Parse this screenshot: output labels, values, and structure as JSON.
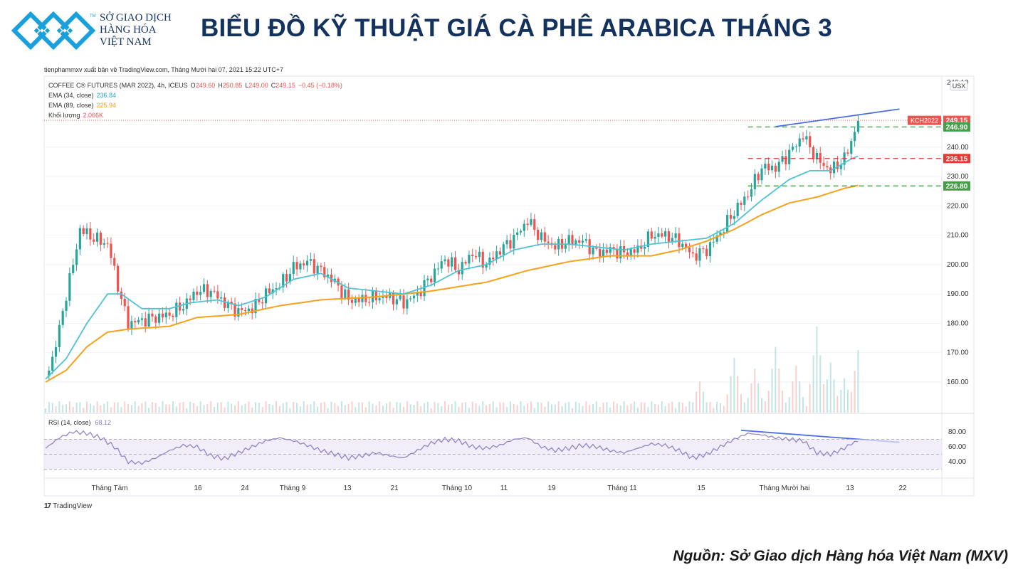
{
  "header": {
    "logo_lines": [
      "SỞ GIAO DỊCH",
      "HÀNG HÓA",
      "VIỆT NAM"
    ],
    "logo_mark": "TM",
    "title": "BIỂU ĐỒ KỸ THUẬT GIÁ CÀ PHÊ ARABICA THÁNG 3"
  },
  "publish_line": "tienphammxv xuất bản về TradingView.com, Tháng Mười hai 07, 2021 15:22 UTC+7",
  "legend": {
    "symbol": "COFFEE C® FUTURES (MAR 2022), 4h, ICEUS",
    "o_label": "O",
    "o_value": "249.60",
    "h_label": "H",
    "h_value": "250.85",
    "l_label": "L",
    "l_value": "249.00",
    "c_label": "C",
    "c_value": "249.15",
    "change": "−0.45 (−0.18%)",
    "ema34_label": "EMA (34, close)",
    "ema34_value": "236.84",
    "ema89_label": "EMA (89, close)",
    "ema89_value": "225.94",
    "volume_label": "Khối lượng",
    "volume_value": "2.066K",
    "rsi_label": "RSI (14, close)",
    "rsi_value": "68.12"
  },
  "currency": "USX",
  "price_tags": {
    "symbol": "KCH2022",
    "close": "249.15",
    "resistance": "246.90",
    "mid": "236.15",
    "support": "226.80"
  },
  "footer": {
    "brand_mark": "17",
    "brand": "TradingView",
    "source": "Nguồn: Sở Giao dịch Hàng hóa Việt Nam (MXV)"
  },
  "colors": {
    "up": "#26a69a",
    "down": "#ef5350",
    "ema34": "#4fc3d4",
    "ema89": "#f5a11c",
    "rsi": "#8e7cc3",
    "trend": "#4a6de5",
    "support": "#43a047",
    "resistance": "#e53935",
    "brand": "#14325e"
  },
  "chart_data": {
    "type": "candlestick",
    "title": "COFFEE C® FUTURES (MAR 2022), 4h, ICEUS",
    "ylim": [
      152,
      263
    ],
    "y_ticks": [
      160,
      170,
      180,
      190,
      200,
      210,
      220,
      230,
      240
    ],
    "top_tick_partial": "249.10",
    "x_ticks": [
      "Tháng Tám",
      "16",
      "24",
      "Tháng 9",
      "13",
      "21",
      "Tháng 10",
      "11",
      "19",
      "Tháng 11",
      "15",
      "Tháng Mười hai",
      "13",
      "22"
    ],
    "price_path_keypoints": [
      [
        0,
        162
      ],
      [
        1,
        168
      ],
      [
        2,
        178
      ],
      [
        3,
        190
      ],
      [
        4,
        200
      ],
      [
        5,
        212
      ],
      [
        7,
        209
      ],
      [
        9,
        207
      ],
      [
        10,
        198
      ],
      [
        11,
        188
      ],
      [
        12,
        180
      ],
      [
        14,
        181
      ],
      [
        16,
        182
      ],
      [
        18,
        183
      ],
      [
        20,
        186
      ],
      [
        22,
        191
      ],
      [
        24,
        191
      ],
      [
        26,
        187
      ],
      [
        28,
        184
      ],
      [
        30,
        185
      ],
      [
        32,
        190
      ],
      [
        34,
        193
      ],
      [
        36,
        199
      ],
      [
        38,
        201
      ],
      [
        40,
        198
      ],
      [
        42,
        194
      ],
      [
        44,
        188
      ],
      [
        46,
        188
      ],
      [
        48,
        189
      ],
      [
        50,
        189
      ],
      [
        52,
        187
      ],
      [
        54,
        190
      ],
      [
        56,
        196
      ],
      [
        58,
        202
      ],
      [
        60,
        198
      ],
      [
        62,
        204
      ],
      [
        64,
        200
      ],
      [
        66,
        205
      ],
      [
        68,
        209
      ],
      [
        70,
        215
      ],
      [
        72,
        209
      ],
      [
        74,
        206
      ],
      [
        76,
        208
      ],
      [
        78,
        208
      ],
      [
        80,
        204
      ],
      [
        82,
        205
      ],
      [
        84,
        204
      ],
      [
        86,
        205
      ],
      [
        88,
        210
      ],
      [
        90,
        210
      ],
      [
        92,
        208
      ],
      [
        94,
        203
      ],
      [
        96,
        205
      ],
      [
        98,
        211
      ],
      [
        100,
        218
      ],
      [
        102,
        224
      ],
      [
        104,
        233
      ],
      [
        106,
        233
      ],
      [
        108,
        238
      ],
      [
        110,
        244
      ],
      [
        112,
        236
      ],
      [
        114,
        232
      ],
      [
        116,
        236
      ],
      [
        117,
        242
      ],
      [
        118,
        249
      ]
    ],
    "ema34_keypoints": [
      [
        0,
        161
      ],
      [
        3,
        168
      ],
      [
        6,
        180
      ],
      [
        9,
        190
      ],
      [
        11,
        190
      ],
      [
        14,
        185
      ],
      [
        18,
        185
      ],
      [
        21,
        187
      ],
      [
        25,
        188
      ],
      [
        28,
        186
      ],
      [
        32,
        189
      ],
      [
        36,
        195
      ],
      [
        40,
        197
      ],
      [
        44,
        192
      ],
      [
        48,
        191
      ],
      [
        52,
        190
      ],
      [
        56,
        193
      ],
      [
        60,
        198
      ],
      [
        64,
        200
      ],
      [
        68,
        205
      ],
      [
        72,
        207
      ],
      [
        76,
        207
      ],
      [
        80,
        206
      ],
      [
        84,
        205
      ],
      [
        88,
        207
      ],
      [
        92,
        208
      ],
      [
        96,
        209
      ],
      [
        100,
        214
      ],
      [
        104,
        222
      ],
      [
        108,
        229
      ],
      [
        111,
        232
      ],
      [
        114,
        232
      ],
      [
        117,
        236
      ],
      [
        118,
        237
      ]
    ],
    "ema89_keypoints": [
      [
        0,
        160
      ],
      [
        3,
        164
      ],
      [
        6,
        172
      ],
      [
        9,
        177
      ],
      [
        12,
        178
      ],
      [
        18,
        179
      ],
      [
        22,
        182
      ],
      [
        28,
        183
      ],
      [
        34,
        186
      ],
      [
        40,
        188
      ],
      [
        48,
        189
      ],
      [
        56,
        191
      ],
      [
        64,
        194
      ],
      [
        70,
        198
      ],
      [
        76,
        201
      ],
      [
        82,
        203
      ],
      [
        88,
        203
      ],
      [
        92,
        205
      ],
      [
        96,
        208
      ],
      [
        100,
        212
      ],
      [
        104,
        217
      ],
      [
        108,
        221
      ],
      [
        112,
        223
      ],
      [
        116,
        226
      ],
      [
        118,
        227
      ]
    ],
    "volume_peaks": [
      [
        95,
        0.2
      ],
      [
        100,
        0.35
      ],
      [
        103,
        0.28
      ],
      [
        106,
        0.42
      ],
      [
        109,
        0.3
      ],
      [
        112,
        0.55
      ],
      [
        114,
        0.32
      ],
      [
        116,
        0.22
      ],
      [
        118,
        0.4
      ]
    ],
    "rsi": {
      "ylim": [
        20,
        100
      ],
      "ticks": [
        40,
        60,
        80
      ],
      "levels": [
        30,
        50,
        70
      ],
      "keypoints": [
        [
          0,
          58
        ],
        [
          2,
          72
        ],
        [
          4,
          80
        ],
        [
          6,
          78
        ],
        [
          8,
          72
        ],
        [
          10,
          60
        ],
        [
          12,
          40
        ],
        [
          14,
          38
        ],
        [
          16,
          45
        ],
        [
          18,
          55
        ],
        [
          20,
          62
        ],
        [
          22,
          60
        ],
        [
          24,
          48
        ],
        [
          26,
          44
        ],
        [
          28,
          52
        ],
        [
          30,
          60
        ],
        [
          32,
          68
        ],
        [
          34,
          72
        ],
        [
          36,
          68
        ],
        [
          38,
          62
        ],
        [
          40,
          55
        ],
        [
          42,
          50
        ],
        [
          44,
          45
        ],
        [
          46,
          48
        ],
        [
          48,
          52
        ],
        [
          50,
          48
        ],
        [
          52,
          45
        ],
        [
          54,
          55
        ],
        [
          56,
          65
        ],
        [
          58,
          70
        ],
        [
          60,
          68
        ],
        [
          62,
          60
        ],
        [
          64,
          58
        ],
        [
          66,
          62
        ],
        [
          68,
          70
        ],
        [
          70,
          72
        ],
        [
          72,
          60
        ],
        [
          74,
          55
        ],
        [
          76,
          58
        ],
        [
          78,
          62
        ],
        [
          80,
          60
        ],
        [
          82,
          55
        ],
        [
          84,
          52
        ],
        [
          86,
          58
        ],
        [
          88,
          64
        ],
        [
          90,
          62
        ],
        [
          92,
          55
        ],
        [
          94,
          45
        ],
        [
          96,
          50
        ],
        [
          98,
          60
        ],
        [
          100,
          70
        ],
        [
          102,
          78
        ],
        [
          104,
          76
        ],
        [
          106,
          72
        ],
        [
          108,
          70
        ],
        [
          110,
          68
        ],
        [
          112,
          52
        ],
        [
          114,
          50
        ],
        [
          116,
          58
        ],
        [
          117,
          64
        ],
        [
          118,
          68
        ]
      ]
    },
    "levels": [
      {
        "value": 246.9,
        "label": "246.90",
        "style": "green-dashed"
      },
      {
        "value": 236.15,
        "label": "236.15",
        "style": "red-dashed"
      },
      {
        "value": 226.8,
        "label": "226.80",
        "style": "green-dashed"
      }
    ],
    "trendlines": [
      {
        "pane": "price",
        "from": [
          106,
          247
        ],
        "to": [
          124,
          253
        ]
      },
      {
        "pane": "rsi",
        "from": [
          101,
          82
        ],
        "to": [
          124,
          66
        ]
      }
    ]
  }
}
